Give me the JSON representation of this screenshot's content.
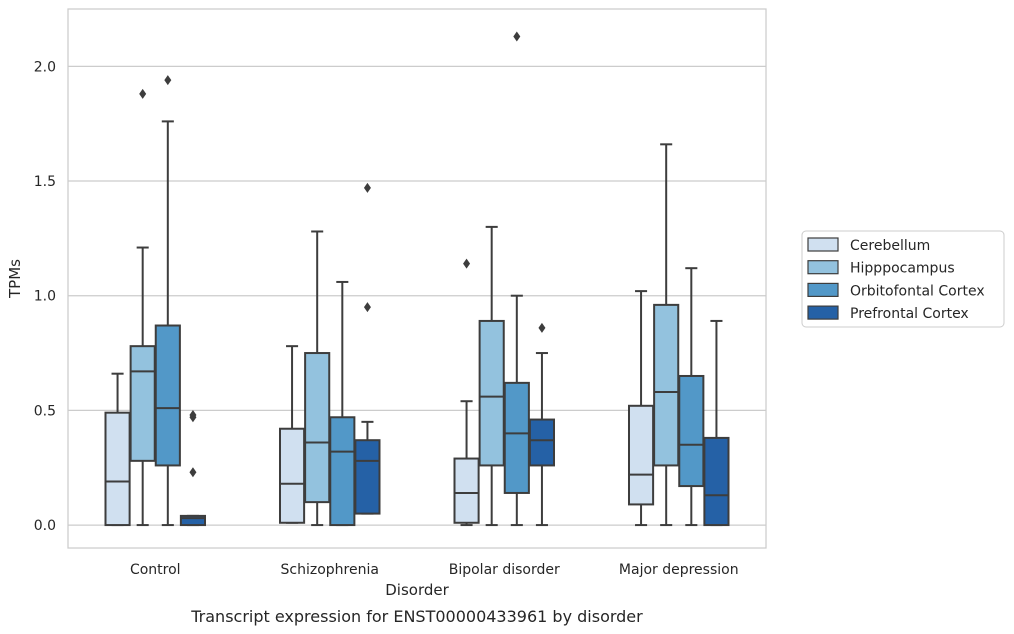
{
  "chart_data": {
    "type": "box",
    "caption": "Transcript expression for ENST00000433961 by disorder",
    "xlabel": "Disorder",
    "ylabel": "TPMs",
    "ylim": [
      -0.1,
      2.25
    ],
    "yticks": [
      0.0,
      0.5,
      1.0,
      1.5,
      2.0
    ],
    "ytick_labels": [
      "0.0",
      "0.5",
      "1.0",
      "1.5",
      "2.0"
    ],
    "grid": "horizontal",
    "legend_position": "right",
    "categories": [
      "Control",
      "Schizophrenia",
      "Bipolar disorder",
      "Major depression"
    ],
    "series": [
      {
        "name": "Cerebellum",
        "color": "#d0e0f0",
        "boxes": [
          {
            "min": 0.0,
            "q1": 0.0,
            "median": 0.19,
            "q3": 0.49,
            "max": 0.66,
            "outliers": []
          },
          {
            "min": 0.01,
            "q1": 0.01,
            "median": 0.18,
            "q3": 0.42,
            "max": 0.78,
            "outliers": []
          },
          {
            "min": 0.0,
            "q1": 0.01,
            "median": 0.14,
            "q3": 0.29,
            "max": 0.54,
            "outliers": [
              1.14
            ]
          },
          {
            "min": 0.0,
            "q1": 0.09,
            "median": 0.22,
            "q3": 0.52,
            "max": 1.02,
            "outliers": []
          }
        ]
      },
      {
        "name": "Hipppocampus",
        "color": "#93c2de",
        "boxes": [
          {
            "min": 0.0,
            "q1": 0.28,
            "median": 0.67,
            "q3": 0.78,
            "max": 1.21,
            "outliers": [
              1.88
            ]
          },
          {
            "min": 0.0,
            "q1": 0.1,
            "median": 0.36,
            "q3": 0.75,
            "max": 1.28,
            "outliers": []
          },
          {
            "min": 0.0,
            "q1": 0.26,
            "median": 0.56,
            "q3": 0.89,
            "max": 1.3,
            "outliers": []
          },
          {
            "min": 0.0,
            "q1": 0.26,
            "median": 0.58,
            "q3": 0.96,
            "max": 1.66,
            "outliers": []
          }
        ]
      },
      {
        "name": "Orbitofontal Cortex",
        "color": "#5298c8",
        "boxes": [
          {
            "min": 0.0,
            "q1": 0.26,
            "median": 0.51,
            "q3": 0.87,
            "max": 1.76,
            "outliers": [
              1.94
            ]
          },
          {
            "min": 0.0,
            "q1": 0.0,
            "median": 0.32,
            "q3": 0.47,
            "max": 1.06,
            "outliers": []
          },
          {
            "min": 0.0,
            "q1": 0.14,
            "median": 0.4,
            "q3": 0.62,
            "max": 1.0,
            "outliers": [
              2.13
            ]
          },
          {
            "min": 0.0,
            "q1": 0.17,
            "median": 0.35,
            "q3": 0.65,
            "max": 1.12,
            "outliers": []
          }
        ]
      },
      {
        "name": "Prefrontal Cortex",
        "color": "#2561a6",
        "boxes": [
          {
            "min": 0.0,
            "q1": 0.0,
            "median": 0.03,
            "q3": 0.04,
            "max": 0.04,
            "outliers": [
              0.23,
              0.47,
              0.48
            ]
          },
          {
            "min": 0.05,
            "q1": 0.05,
            "median": 0.28,
            "q3": 0.37,
            "max": 0.45,
            "outliers": [
              0.95,
              1.47
            ]
          },
          {
            "min": 0.0,
            "q1": 0.26,
            "median": 0.37,
            "q3": 0.46,
            "max": 0.75,
            "outliers": [
              0.86
            ]
          },
          {
            "min": 0.0,
            "q1": 0.0,
            "median": 0.13,
            "q3": 0.38,
            "max": 0.89,
            "outliers": []
          }
        ]
      }
    ]
  }
}
